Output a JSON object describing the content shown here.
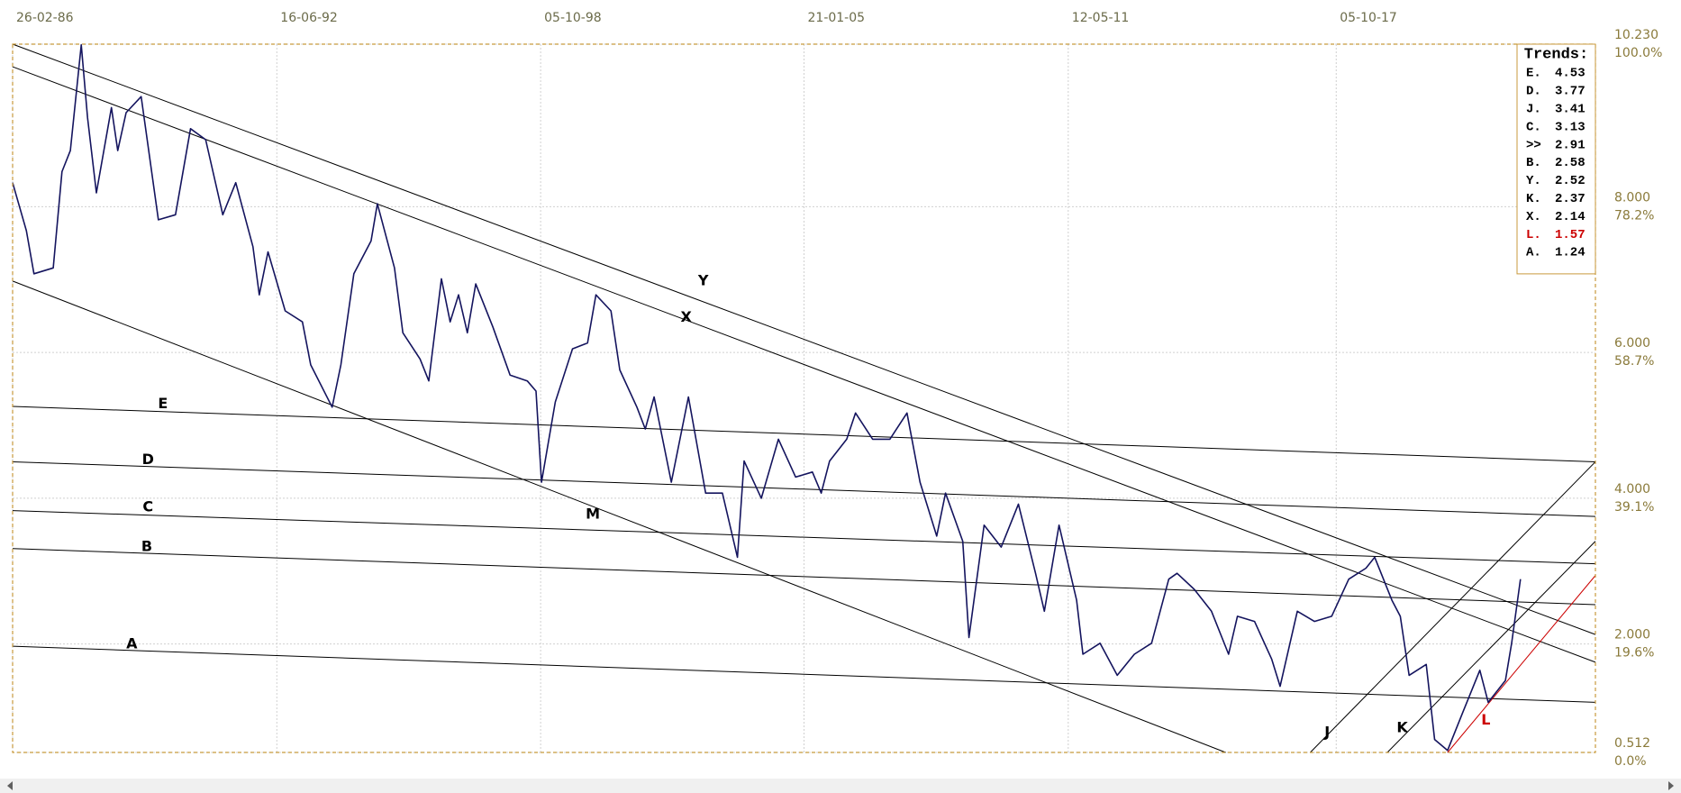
{
  "chart_data": {
    "type": "line",
    "xlim": [
      1986.15,
      2023.95
    ],
    "xticks": [
      {
        "value": 1986.15,
        "label": "26-02-86"
      },
      {
        "value": 1992.46,
        "label": "16-06-92"
      },
      {
        "value": 1998.76,
        "label": "05-10-98"
      },
      {
        "value": 2005.05,
        "label": "21-01-05"
      },
      {
        "value": 2011.36,
        "label": "12-05-11"
      },
      {
        "value": 2017.76,
        "label": "05-10-17"
      }
    ],
    "ylim": [
      0.512,
      10.23
    ],
    "yticks": [
      {
        "value": 0.512,
        "label": "0.512",
        "pct_label": "0.0%"
      },
      {
        "value": 2,
        "label": "2.000",
        "pct_label": "19.6%"
      },
      {
        "value": 4,
        "label": "4.000",
        "pct_label": "39.1%"
      },
      {
        "value": 6,
        "label": "6.000",
        "pct_label": "58.7%"
      },
      {
        "value": 8,
        "label": "8.000",
        "pct_label": "78.2%"
      },
      {
        "value": 10.23,
        "label": "10.230",
        "pct_label": "100.0%"
      }
    ],
    "grid": true,
    "x": [
      1986.15,
      1986.48,
      1986.66,
      1987.12,
      1987.33,
      1987.53,
      1987.79,
      1987.94,
      1988.15,
      1988.51,
      1988.66,
      1988.86,
      1989.22,
      1989.63,
      1990.04,
      1990.4,
      1990.76,
      1991.17,
      1991.48,
      1991.89,
      1992.04,
      1992.25,
      1992.66,
      1993.07,
      1993.27,
      1993.78,
      1993.99,
      1994.3,
      1994.71,
      1994.86,
      1995.27,
      1995.47,
      1995.88,
      1996.09,
      1996.39,
      1996.6,
      1996.8,
      1997.01,
      1997.21,
      1997.62,
      1998.03,
      1998.44,
      1998.65,
      1998.78,
      1999.11,
      1999.52,
      1999.88,
      2000.08,
      2000.44,
      2000.65,
      2001.06,
      2001.26,
      2001.47,
      2001.88,
      2002.29,
      2002.7,
      2003.1,
      2003.46,
      2003.62,
      2004.03,
      2004.44,
      2004.85,
      2005.25,
      2005.46,
      2005.66,
      2006.07,
      2006.28,
      2006.69,
      2007.1,
      2007.51,
      2007.82,
      2008.22,
      2008.43,
      2008.84,
      2008.99,
      2009.35,
      2009.76,
      2010.17,
      2010.58,
      2010.79,
      2011.14,
      2011.56,
      2011.71,
      2012.12,
      2012.53,
      2012.94,
      2013.35,
      2013.76,
      2013.96,
      2014.37,
      2014.78,
      2015.19,
      2015.4,
      2015.81,
      2016.22,
      2016.42,
      2016.83,
      2017.24,
      2017.65,
      2018.06,
      2018.47,
      2018.68,
      2019.09,
      2019.29,
      2019.5,
      2019.91,
      2020.11,
      2020.42,
      2020.78,
      2021.19,
      2021.39,
      2021.8,
      2021.95,
      2022.16
    ],
    "series": [
      {
        "color": "#14145e",
        "values": [
          8.33,
          7.67,
          7.08,
          7.16,
          8.48,
          8.77,
          10.22,
          9.22,
          8.19,
          9.36,
          8.77,
          9.29,
          9.51,
          7.82,
          7.89,
          9.07,
          8.92,
          7.89,
          8.33,
          7.45,
          6.79,
          7.38,
          6.57,
          6.42,
          5.83,
          5.25,
          5.83,
          7.08,
          7.53,
          8.04,
          7.16,
          6.27,
          5.91,
          5.61,
          7.01,
          6.42,
          6.79,
          6.27,
          6.94,
          6.35,
          5.69,
          5.61,
          5.47,
          4.22,
          5.32,
          6.05,
          6.13,
          6.79,
          6.57,
          5.76,
          5.25,
          4.95,
          5.39,
          4.22,
          5.39,
          4.07,
          4.07,
          3.19,
          4.51,
          4.0,
          4.81,
          4.29,
          4.36,
          4.07,
          4.51,
          4.81,
          5.17,
          4.81,
          4.81,
          5.17,
          4.22,
          3.48,
          4.07,
          3.41,
          2.09,
          3.63,
          3.33,
          3.92,
          2.97,
          2.45,
          3.63,
          2.6,
          1.86,
          2.01,
          1.57,
          1.86,
          2.01,
          2.89,
          2.97,
          2.75,
          2.45,
          1.86,
          2.38,
          2.31,
          1.79,
          1.42,
          2.45,
          2.31,
          2.38,
          2.89,
          3.04,
          3.19,
          2.6,
          2.38,
          1.57,
          1.72,
          0.69,
          0.54,
          1.06,
          1.64,
          1.2,
          1.5,
          2.01,
          2.89
        ]
      }
    ],
    "trendlines": [
      {
        "name": "E",
        "color": "#000000",
        "x": [
          1986.15,
          2023.95
        ],
        "y": [
          5.26,
          4.5
        ]
      },
      {
        "name": "D",
        "color": "#000000",
        "x": [
          1986.15,
          2023.95
        ],
        "y": [
          4.5,
          3.75
        ]
      },
      {
        "name": "C",
        "color": "#000000",
        "x": [
          1986.15,
          2023.95
        ],
        "y": [
          3.83,
          3.1
        ]
      },
      {
        "name": "B",
        "color": "#000000",
        "x": [
          1986.15,
          2023.95
        ],
        "y": [
          3.31,
          2.54
        ]
      },
      {
        "name": "A",
        "color": "#000000",
        "x": [
          1986.15,
          2023.95
        ],
        "y": [
          1.97,
          1.2
        ]
      },
      {
        "name": "Y",
        "color": "#000000",
        "x": [
          1986.15,
          2023.95
        ],
        "y": [
          10.23,
          2.13
        ]
      },
      {
        "name": "X",
        "color": "#000000",
        "x": [
          1986.15,
          2023.95
        ],
        "y": [
          9.92,
          1.75
        ]
      },
      {
        "name": "M",
        "color": "#000000",
        "x": [
          1986.15,
          2015.12
        ],
        "y": [
          6.98,
          0.512
        ]
      },
      {
        "name": "J",
        "color": "#000000",
        "x": [
          2017.14,
          2023.95
        ],
        "y": [
          0.512,
          4.5
        ]
      },
      {
        "name": "K",
        "color": "#000000",
        "x": [
          2018.98,
          2023.95
        ],
        "y": [
          0.512,
          3.41
        ]
      },
      {
        "name": "L",
        "color": "#cc0000",
        "x": [
          2020.42,
          2023.95
        ],
        "y": [
          0.512,
          2.94
        ]
      }
    ],
    "legend": {
      "title": "Trends:",
      "items": [
        {
          "label": "E.",
          "value": 4.53
        },
        {
          "label": "D.",
          "value": 3.77
        },
        {
          "label": "J.",
          "value": 3.41
        },
        {
          "label": "C.",
          "value": 3.13
        },
        {
          "label": ">>",
          "value": 2.91
        },
        {
          "label": "B.",
          "value": 2.58
        },
        {
          "label": "Y.",
          "value": 2.52
        },
        {
          "label": "K.",
          "value": 2.37
        },
        {
          "label": "X.",
          "value": 2.14
        },
        {
          "label": "L.",
          "value": 1.57,
          "color": "#cc0000"
        },
        {
          "label": "A.",
          "value": 1.24
        }
      ]
    }
  }
}
